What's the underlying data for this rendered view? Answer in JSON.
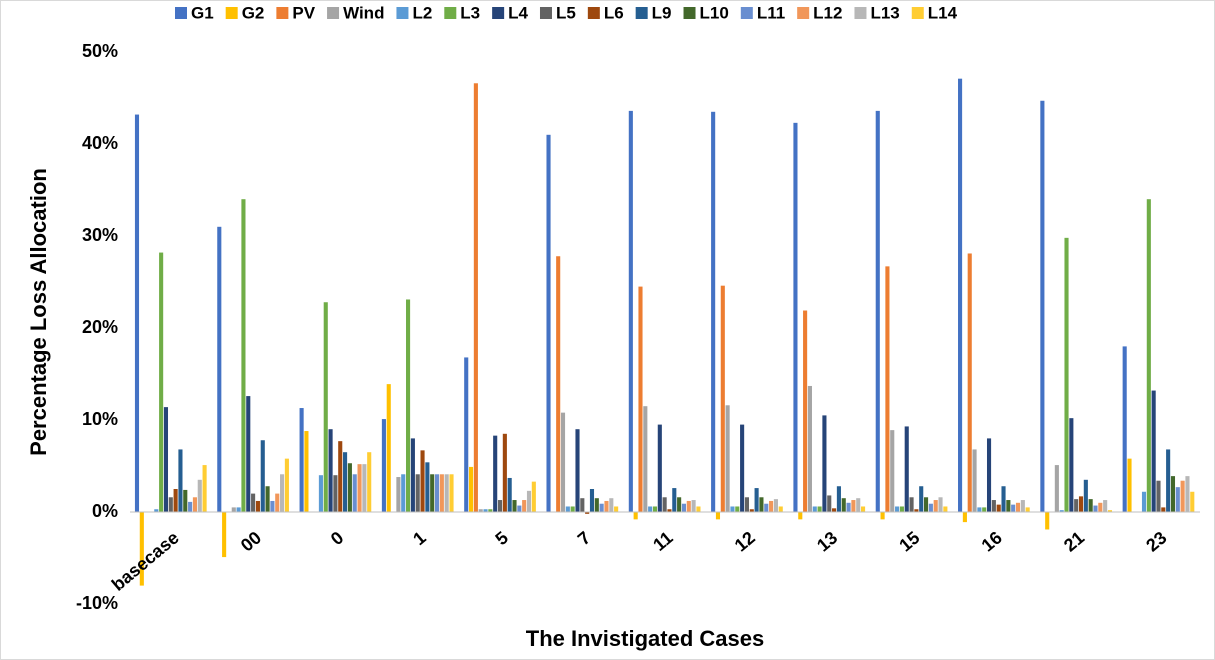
{
  "chart_data": {
    "type": "bar",
    "y_label": "Percentage Loss Allocation",
    "x_label": "The Invistigated Cases",
    "categories": [
      "basecase",
      "00",
      "0",
      "1",
      "5",
      "7",
      "11",
      "12",
      "13",
      "15",
      "16",
      "21",
      "23"
    ],
    "ylim": [
      -10,
      50
    ],
    "yticks": [
      {
        "value": -10,
        "label": "-10%"
      },
      {
        "value": 0,
        "label": "0%"
      },
      {
        "value": 10,
        "label": "10%"
      },
      {
        "value": 20,
        "label": "20%"
      },
      {
        "value": 30,
        "label": "30%"
      },
      {
        "value": 40,
        "label": "40%"
      },
      {
        "value": 50,
        "label": "50%"
      }
    ],
    "grid": false,
    "legend": "top",
    "series": [
      {
        "name": "G1",
        "color": "#4472c4",
        "values": [
          43.2,
          31,
          11.3,
          10.1,
          16.8,
          41,
          43.6,
          43.5,
          42.3,
          43.6,
          47.1,
          44.7,
          18
        ]
      },
      {
        "name": "G2",
        "color": "#ffc000",
        "values": [
          -8,
          -4.9,
          8.8,
          13.9,
          4.9,
          0,
          -0.8,
          -0.8,
          -0.8,
          -0.8,
          -1.1,
          -1.9,
          5.8
        ]
      },
      {
        "name": "PV",
        "color": "#ed7d31",
        "values": [
          0,
          0,
          0,
          0,
          46.6,
          27.8,
          24.5,
          24.6,
          21.9,
          26.7,
          28.1,
          0,
          0
        ]
      },
      {
        "name": "Wind",
        "color": "#a5a5a5",
        "values": [
          0,
          0.5,
          0,
          3.8,
          0.3,
          10.8,
          11.5,
          11.6,
          13.7,
          8.9,
          6.8,
          5.1,
          0
        ]
      },
      {
        "name": "L2",
        "color": "#5b9bd5",
        "values": [
          0.3,
          0.5,
          4,
          4.1,
          0.3,
          0.6,
          0.6,
          0.6,
          0.6,
          0.6,
          0.5,
          0.2,
          2.2
        ]
      },
      {
        "name": "L3",
        "color": "#70ad47",
        "values": [
          28.2,
          34,
          22.8,
          23.1,
          0.3,
          0.6,
          0.6,
          0.6,
          0.6,
          0.6,
          0.5,
          29.8,
          34
        ]
      },
      {
        "name": "L4",
        "color": "#264478",
        "values": [
          11.4,
          12.6,
          9,
          8,
          8.3,
          9,
          9.5,
          9.5,
          10.5,
          9.3,
          8,
          10.2,
          13.2
        ]
      },
      {
        "name": "L5",
        "color": "#636363",
        "values": [
          1.6,
          2,
          4,
          4.1,
          1.3,
          1.5,
          1.6,
          1.6,
          1.8,
          1.6,
          1.3,
          1.4,
          3.4
        ]
      },
      {
        "name": "L6",
        "color": "#9e480e",
        "values": [
          2.5,
          1.2,
          7.7,
          6.7,
          8.5,
          -0.2,
          0.3,
          0.3,
          0.4,
          0.3,
          0.8,
          1.7,
          0.5
        ]
      },
      {
        "name": "L9",
        "color": "#255e91",
        "values": [
          6.8,
          7.8,
          6.5,
          5.4,
          3.7,
          2.5,
          2.6,
          2.6,
          2.8,
          2.8,
          2.8,
          3.5,
          6.8
        ]
      },
      {
        "name": "L10",
        "color": "#43682b",
        "values": [
          2.4,
          2.8,
          5.3,
          4.1,
          1.3,
          1.5,
          1.6,
          1.6,
          1.5,
          1.6,
          1.3,
          1.4,
          3.9
        ]
      },
      {
        "name": "L11",
        "color": "#698ed0",
        "values": [
          1.1,
          1.2,
          4.1,
          4.1,
          0.7,
          0.9,
          0.9,
          0.9,
          1,
          0.9,
          0.8,
          0.7,
          2.7
        ]
      },
      {
        "name": "L12",
        "color": "#f1975a",
        "values": [
          1.6,
          2,
          5.2,
          4.1,
          1.3,
          1.2,
          1.2,
          1.2,
          1.3,
          1.3,
          1,
          1,
          3.4
        ]
      },
      {
        "name": "L13",
        "color": "#b7b7b7",
        "values": [
          3.5,
          4.1,
          5.2,
          4.1,
          2.3,
          1.5,
          1.3,
          1.4,
          1.5,
          1.6,
          1.3,
          1.3,
          3.9
        ]
      },
      {
        "name": "L14",
        "color": "#ffcd33",
        "values": [
          5.1,
          5.8,
          6.5,
          4.1,
          3.3,
          0.6,
          0.6,
          0.6,
          0.6,
          0.6,
          0.5,
          0.2,
          2.2
        ]
      }
    ]
  }
}
